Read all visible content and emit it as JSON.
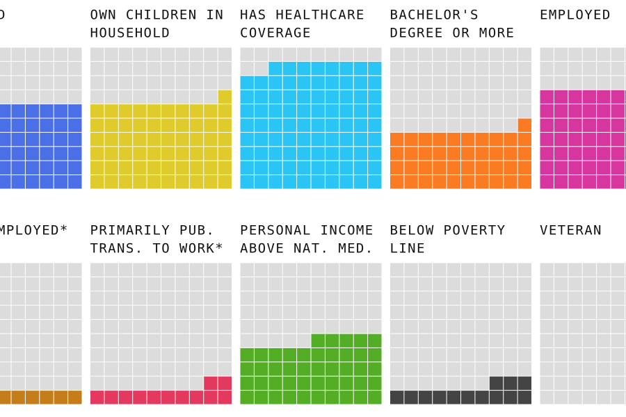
{
  "chart_data": {
    "type": "waffle",
    "panels": [
      {
        "label": [
          "D"
        ],
        "value": 60,
        "color": "#4a6fe6"
      },
      {
        "label": [
          "OWN CHILDREN IN",
          "HOUSEHOLD"
        ],
        "value": 61,
        "color": "#dfcb2c"
      },
      {
        "label": [
          "HAS HEALTHCARE",
          "COVERAGE"
        ],
        "value": 88,
        "color": "#2ac5f4"
      },
      {
        "label": [
          "BACHELOR'S",
          "DEGREE OR MORE"
        ],
        "value": 41,
        "color": "#fb7b22"
      },
      {
        "label": [
          "EMPLOYED"
        ],
        "value": 70,
        "color": "#d8369f"
      },
      {
        "label": [
          "MPLOYED*"
        ],
        "value": 10,
        "color": "#c47d1a"
      },
      {
        "label": [
          "PRIMARILY PUB.",
          "TRANS. TO WORK*"
        ],
        "value": 12,
        "color": "#e4395f"
      },
      {
        "label": [
          "PERSONAL INCOME",
          "ABOVE NAT. MED."
        ],
        "value": 45,
        "color": "#53ad25"
      },
      {
        "label": [
          "BELOW POVERTY",
          "LINE"
        ],
        "value": 13,
        "color": "#444444"
      },
      {
        "label": [
          "VETERAN"
        ],
        "value": 0,
        "color": "#999999"
      }
    ]
  }
}
